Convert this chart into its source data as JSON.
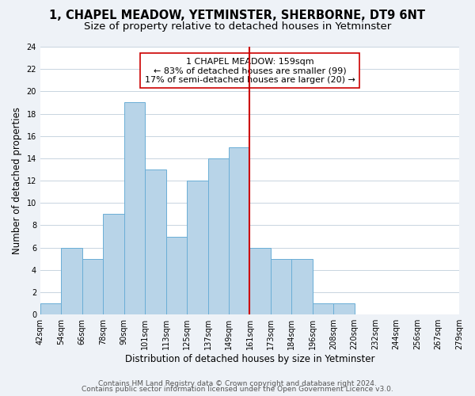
{
  "title": "1, CHAPEL MEADOW, YETMINSTER, SHERBORNE, DT9 6NT",
  "subtitle": "Size of property relative to detached houses in Yetminster",
  "xlabel": "Distribution of detached houses by size in Yetminster",
  "ylabel": "Number of detached properties",
  "bin_labels": [
    "42sqm",
    "54sqm",
    "66sqm",
    "78sqm",
    "90sqm",
    "101sqm",
    "113sqm",
    "125sqm",
    "137sqm",
    "149sqm",
    "161sqm",
    "173sqm",
    "184sqm",
    "196sqm",
    "208sqm",
    "220sqm",
    "232sqm",
    "244sqm",
    "256sqm",
    "267sqm",
    "279sqm"
  ],
  "bar_heights": [
    1,
    6,
    5,
    9,
    19,
    13,
    7,
    12,
    14,
    15,
    6,
    5,
    5,
    1,
    1,
    0,
    0,
    0,
    0,
    0
  ],
  "bar_color": "#b8d4e8",
  "bar_edge_color": "#6aaed6",
  "vline_label_idx": 10,
  "vline_color": "#cc0000",
  "annotation_title": "1 CHAPEL MEADOW: 159sqm",
  "annotation_line1": "← 83% of detached houses are smaller (99)",
  "annotation_line2": "17% of semi-detached houses are larger (20) →",
  "annotation_box_color": "#ffffff",
  "annotation_box_edge": "#cc0000",
  "ylim": [
    0,
    24
  ],
  "yticks": [
    0,
    2,
    4,
    6,
    8,
    10,
    12,
    14,
    16,
    18,
    20,
    22,
    24
  ],
  "footer1": "Contains HM Land Registry data © Crown copyright and database right 2024.",
  "footer2": "Contains public sector information licensed under the Open Government Licence v3.0.",
  "bg_color": "#eef2f7",
  "plot_bg_color": "#ffffff",
  "grid_color": "#c8d4e0",
  "title_fontsize": 10.5,
  "subtitle_fontsize": 9.5,
  "axis_label_fontsize": 8.5,
  "tick_fontsize": 7,
  "footer_fontsize": 6.5
}
